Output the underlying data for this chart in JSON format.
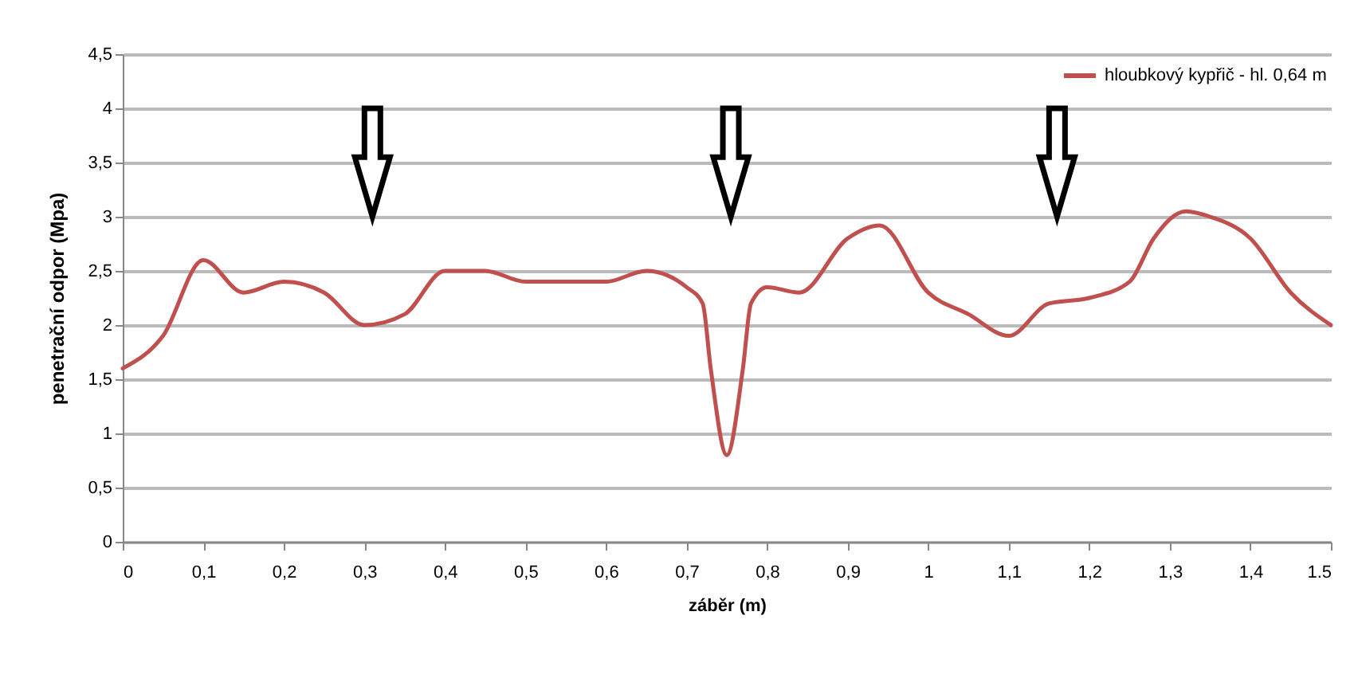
{
  "chart_data": {
    "type": "line",
    "xlabel": "záběr (m)",
    "ylabel": "penetrační odpor (Mpa)",
    "x": [
      0,
      0.05,
      0.1,
      0.15,
      0.2,
      0.25,
      0.3,
      0.35,
      0.4,
      0.45,
      0.5,
      0.55,
      0.6,
      0.65,
      0.7,
      0.72,
      0.73,
      0.75,
      0.77,
      0.78,
      0.8,
      0.84,
      0.9,
      0.94,
      1.0,
      1.05,
      1.1,
      1.15,
      1.2,
      1.25,
      1.28,
      1.32,
      1.35,
      1.4,
      1.45,
      1.5
    ],
    "series": [
      {
        "name": "hloubkový kypřič - hl. 0,64 m",
        "color": "#c0504d",
        "values": [
          1.6,
          1.9,
          2.6,
          2.3,
          2.4,
          2.3,
          2.0,
          2.1,
          2.5,
          2.5,
          2.4,
          2.4,
          2.4,
          2.5,
          2.35,
          2.2,
          1.6,
          0.8,
          1.6,
          2.2,
          2.35,
          2.3,
          2.8,
          2.92,
          2.3,
          2.1,
          1.9,
          2.2,
          2.25,
          2.4,
          2.8,
          3.05,
          3.0,
          2.8,
          2.3,
          2.0
        ]
      }
    ],
    "xlim": [
      0,
      1.5
    ],
    "ylim": [
      0,
      4.5
    ],
    "xticks": [
      0,
      {
        "value": 0.1,
        "label": "0,1"
      },
      {
        "value": 0.2,
        "label": "0,2"
      },
      {
        "value": 0.3,
        "label": "0,3"
      },
      {
        "value": 0.4,
        "label": "0,4"
      },
      {
        "value": 0.5,
        "label": "0,5"
      },
      {
        "value": 0.6,
        "label": "0,6"
      },
      {
        "value": 0.7,
        "label": "0,7"
      },
      {
        "value": 0.8,
        "label": "0,8"
      },
      {
        "value": 0.9,
        "label": "0,9"
      },
      1,
      {
        "value": 1.1,
        "label": "1,1"
      },
      {
        "value": 1.2,
        "label": "1,2"
      },
      {
        "value": 1.3,
        "label": "1,3"
      },
      {
        "value": 1.4,
        "label": "1,4"
      },
      1.5
    ],
    "yticks": [
      0,
      {
        "value": 0.5,
        "label": "0,5"
      },
      1,
      {
        "value": 1.5,
        "label": "1,5"
      },
      2,
      {
        "value": 2.5,
        "label": "2,5"
      },
      3,
      {
        "value": 3.5,
        "label": "3,5"
      },
      4,
      {
        "value": 4.5,
        "label": "4,5"
      }
    ],
    "grid": "y",
    "legend": "top right",
    "marker": "none",
    "line_style": "solid"
  }
}
